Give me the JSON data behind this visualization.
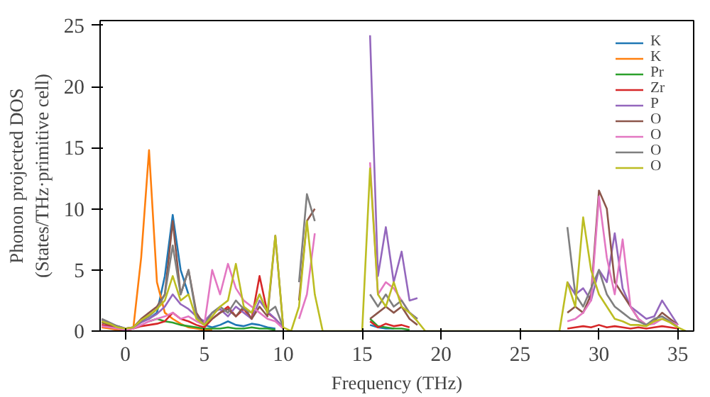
{
  "chart_data": {
    "type": "line",
    "xlabel": "Frequency (THz)",
    "ylabel": "Phonon projected DOS\n(States/THz·primitive cell)",
    "x": [
      -1.5,
      -1,
      -0.5,
      0,
      0.5,
      1,
      1.5,
      2,
      2.5,
      3,
      3.5,
      4,
      4.5,
      5,
      5.5,
      6,
      6.5,
      7,
      7.5,
      8,
      8.5,
      9,
      9.5,
      10,
      10.5,
      11,
      11.5,
      12,
      12.5,
      13,
      13.5,
      14,
      14.5,
      15,
      15.5,
      16,
      16.5,
      17,
      17.5,
      18,
      18.5,
      19,
      19.5,
      20,
      20.5,
      21,
      21.5,
      22,
      22.5,
      23,
      23.5,
      24,
      24.5,
      25,
      25.5,
      26,
      26.5,
      27,
      27.5,
      28,
      28.5,
      29,
      29.5,
      30,
      30.5,
      31,
      31.5,
      32,
      32.5,
      33,
      33.5,
      34,
      34.5,
      35,
      35.5
    ],
    "xlim": [
      -1.6,
      36
    ],
    "ylim": [
      0,
      25.4
    ],
    "xticks": [
      0,
      5,
      10,
      15,
      20,
      25,
      30,
      35
    ],
    "yticks": [
      0,
      5,
      10,
      15,
      20,
      25
    ],
    "legend": "top right",
    "grid": false,
    "series": [
      {
        "name": "K",
        "color": "#1f77b4",
        "values": [
          null,
          null,
          0.4,
          0.2,
          null,
          null,
          1,
          1.5,
          4.5,
          9.5,
          5,
          3,
          null,
          0.5,
          0.3,
          0.5,
          0.8,
          0.5,
          0.4,
          0.6,
          0.5,
          0.3,
          0.2,
          null,
          null,
          null,
          null,
          null,
          null,
          null,
          null,
          null,
          null,
          null,
          0.5,
          0.3,
          0.2,
          0.2,
          null,
          null,
          null,
          null,
          null,
          null,
          null,
          null,
          null,
          null,
          null,
          null,
          null,
          null,
          null,
          null,
          null,
          null,
          null,
          null,
          null,
          null,
          null,
          null,
          null,
          null,
          null,
          null,
          null,
          null,
          null,
          null,
          null,
          null,
          null,
          null,
          null
        ]
      },
      {
        "name": "K",
        "color": "#ff7f0e",
        "values": [
          0.3,
          0.2,
          0.1,
          0.1,
          0.2,
          6,
          14.8,
          4,
          1.5,
          1,
          0.6,
          0.3,
          0.2,
          0.1,
          0.1,
          null,
          null,
          null,
          null,
          null,
          null,
          null,
          null,
          null,
          null,
          null,
          null,
          null,
          null,
          null,
          null,
          null,
          null,
          null,
          null,
          null,
          null,
          null,
          null,
          null,
          null,
          null,
          null,
          null,
          null,
          null,
          null,
          null,
          null,
          null,
          null,
          null,
          null,
          null,
          null,
          null,
          null,
          null,
          null,
          null,
          null,
          null,
          null,
          null,
          null,
          null,
          null,
          null,
          null,
          null,
          null,
          null,
          null,
          null,
          null
        ]
      },
      {
        "name": "Pr",
        "color": "#2ca02c",
        "values": [
          null,
          null,
          null,
          null,
          null,
          null,
          0.8,
          1,
          0.8,
          0.7,
          0.5,
          0.4,
          0.3,
          0.2,
          0.2,
          0.2,
          0.3,
          0.2,
          0.2,
          0.3,
          0.2,
          0.2,
          0.1,
          null,
          null,
          null,
          null,
          null,
          null,
          null,
          null,
          null,
          null,
          null,
          1,
          0.4,
          0.3,
          0.2,
          0.2,
          0.1,
          null,
          null,
          null,
          null,
          null,
          null,
          null,
          null,
          null,
          null,
          null,
          null,
          null,
          null,
          null,
          null,
          null,
          null,
          null,
          null,
          null,
          null,
          null,
          null,
          null,
          null,
          null,
          null,
          null,
          null,
          null,
          null,
          null,
          null,
          null
        ]
      },
      {
        "name": "Zr",
        "color": "#d62728",
        "values": [
          0.5,
          0.4,
          0.2,
          0.1,
          0.2,
          0.4,
          0.5,
          0.6,
          0.8,
          1.5,
          1,
          0.8,
          0.5,
          0.3,
          1,
          1.5,
          2,
          1.2,
          1.8,
          1,
          4.5,
          1.5,
          1,
          0.3,
          null,
          null,
          null,
          null,
          null,
          null,
          null,
          null,
          null,
          null,
          0.8,
          0.3,
          0.6,
          0.4,
          0.5,
          0.3,
          null,
          null,
          null,
          null,
          null,
          null,
          null,
          null,
          null,
          null,
          null,
          null,
          null,
          null,
          null,
          null,
          null,
          null,
          null,
          0.2,
          0.3,
          0.4,
          0.3,
          0.5,
          0.3,
          0.4,
          0.3,
          0.2,
          0.3,
          0.2,
          0.3,
          0.4,
          0.3,
          0.2,
          null
        ]
      },
      {
        "name": "P",
        "color": "#9467bd",
        "values": [
          0.9,
          0.6,
          0.4,
          0.2,
          0.3,
          0.7,
          1,
          1.4,
          2,
          3,
          2.2,
          1.8,
          1.2,
          0.8,
          1.5,
          1.8,
          1.2,
          2,
          1.5,
          1,
          2.5,
          1.6,
          1,
          0.3,
          null,
          null,
          null,
          null,
          null,
          null,
          null,
          null,
          null,
          null,
          24.2,
          4.5,
          8.5,
          4,
          6.5,
          2.5,
          2.7,
          null,
          null,
          null,
          null,
          null,
          null,
          null,
          null,
          null,
          null,
          null,
          null,
          null,
          null,
          null,
          null,
          null,
          null,
          4,
          3,
          3.5,
          2.5,
          5,
          4,
          8,
          3.5,
          2,
          1.5,
          1,
          1.2,
          2.5,
          1.5,
          0.5,
          null
        ]
      },
      {
        "name": "O",
        "color": "#8c564b",
        "values": [
          0.7,
          0.5,
          0.3,
          0.2,
          0.3,
          1,
          1.5,
          2,
          3,
          9,
          3,
          5,
          1.5,
          0.5,
          1,
          1.5,
          1.8,
          1.2,
          2,
          1,
          2,
          1.2,
          7.8,
          0.3,
          null,
          2.5,
          9,
          10,
          null,
          null,
          null,
          null,
          null,
          null,
          1,
          1.5,
          2,
          1.5,
          2,
          1,
          0.5,
          null,
          null,
          null,
          null,
          null,
          null,
          null,
          null,
          null,
          null,
          null,
          null,
          null,
          null,
          null,
          null,
          null,
          null,
          1.5,
          2,
          1.5,
          3,
          11.5,
          10,
          4,
          3,
          2,
          1,
          0.5,
          0.8,
          1.5,
          1,
          0.5,
          null
        ]
      },
      {
        "name": "O",
        "color": "#e377c2",
        "values": [
          0.4,
          0.3,
          0.2,
          0.1,
          0.2,
          0.5,
          0.8,
          1,
          1.2,
          1.5,
          1,
          1.2,
          0.8,
          0.5,
          5,
          3,
          5.5,
          3.5,
          2.5,
          2,
          1.5,
          1,
          0.8,
          0.2,
          null,
          1,
          3,
          8,
          null,
          null,
          null,
          null,
          null,
          null,
          13.8,
          3,
          4,
          3.5,
          2.5,
          1.5,
          1,
          null,
          null,
          null,
          null,
          null,
          null,
          null,
          null,
          null,
          null,
          null,
          null,
          null,
          null,
          null,
          null,
          null,
          null,
          0.8,
          1,
          1.5,
          2.5,
          11,
          6,
          3,
          7.5,
          2,
          1,
          0.5,
          0.6,
          1,
          0.8,
          0.5,
          null
        ]
      },
      {
        "name": "O",
        "color": "#7f7f7f",
        "values": [
          1,
          0.7,
          0.4,
          0.2,
          0.3,
          0.8,
          1.2,
          1.8,
          3,
          7,
          3,
          5,
          1.2,
          0.5,
          1.5,
          2,
          1.5,
          2.5,
          1.8,
          1.5,
          3,
          1.5,
          2,
          0.3,
          null,
          4,
          11.2,
          9,
          null,
          null,
          null,
          null,
          null,
          null,
          3,
          2,
          3,
          2,
          2.5,
          1.5,
          1,
          null,
          null,
          null,
          null,
          null,
          null,
          null,
          null,
          null,
          null,
          null,
          null,
          null,
          null,
          null,
          null,
          null,
          null,
          8.5,
          3,
          2,
          3.5,
          5,
          3,
          2,
          1.5,
          1,
          0.8,
          0.5,
          1,
          1.2,
          0.8,
          0.3,
          null
        ]
      },
      {
        "name": "O",
        "color": "#bcbd22",
        "values": [
          0.8,
          0.6,
          0.3,
          0.2,
          0.3,
          0.9,
          1.3,
          1.8,
          2.5,
          4.5,
          2.5,
          3,
          1,
          0.5,
          1.2,
          2,
          2.5,
          5.5,
          2,
          1.5,
          3,
          1.5,
          7.8,
          0.3,
          0,
          2,
          9,
          3,
          0,
          0,
          0,
          0,
          0,
          0,
          13.3,
          3,
          2,
          4,
          2,
          1.5,
          0.8,
          0,
          0,
          0,
          0,
          0,
          0,
          0,
          0,
          0,
          0,
          0,
          0,
          0,
          0,
          0,
          0,
          0,
          0,
          4,
          2,
          9.3,
          5,
          3,
          2,
          1,
          0.8,
          0.5,
          0.5,
          0.4,
          0.8,
          1,
          0.7,
          0.3,
          0
        ]
      }
    ]
  }
}
